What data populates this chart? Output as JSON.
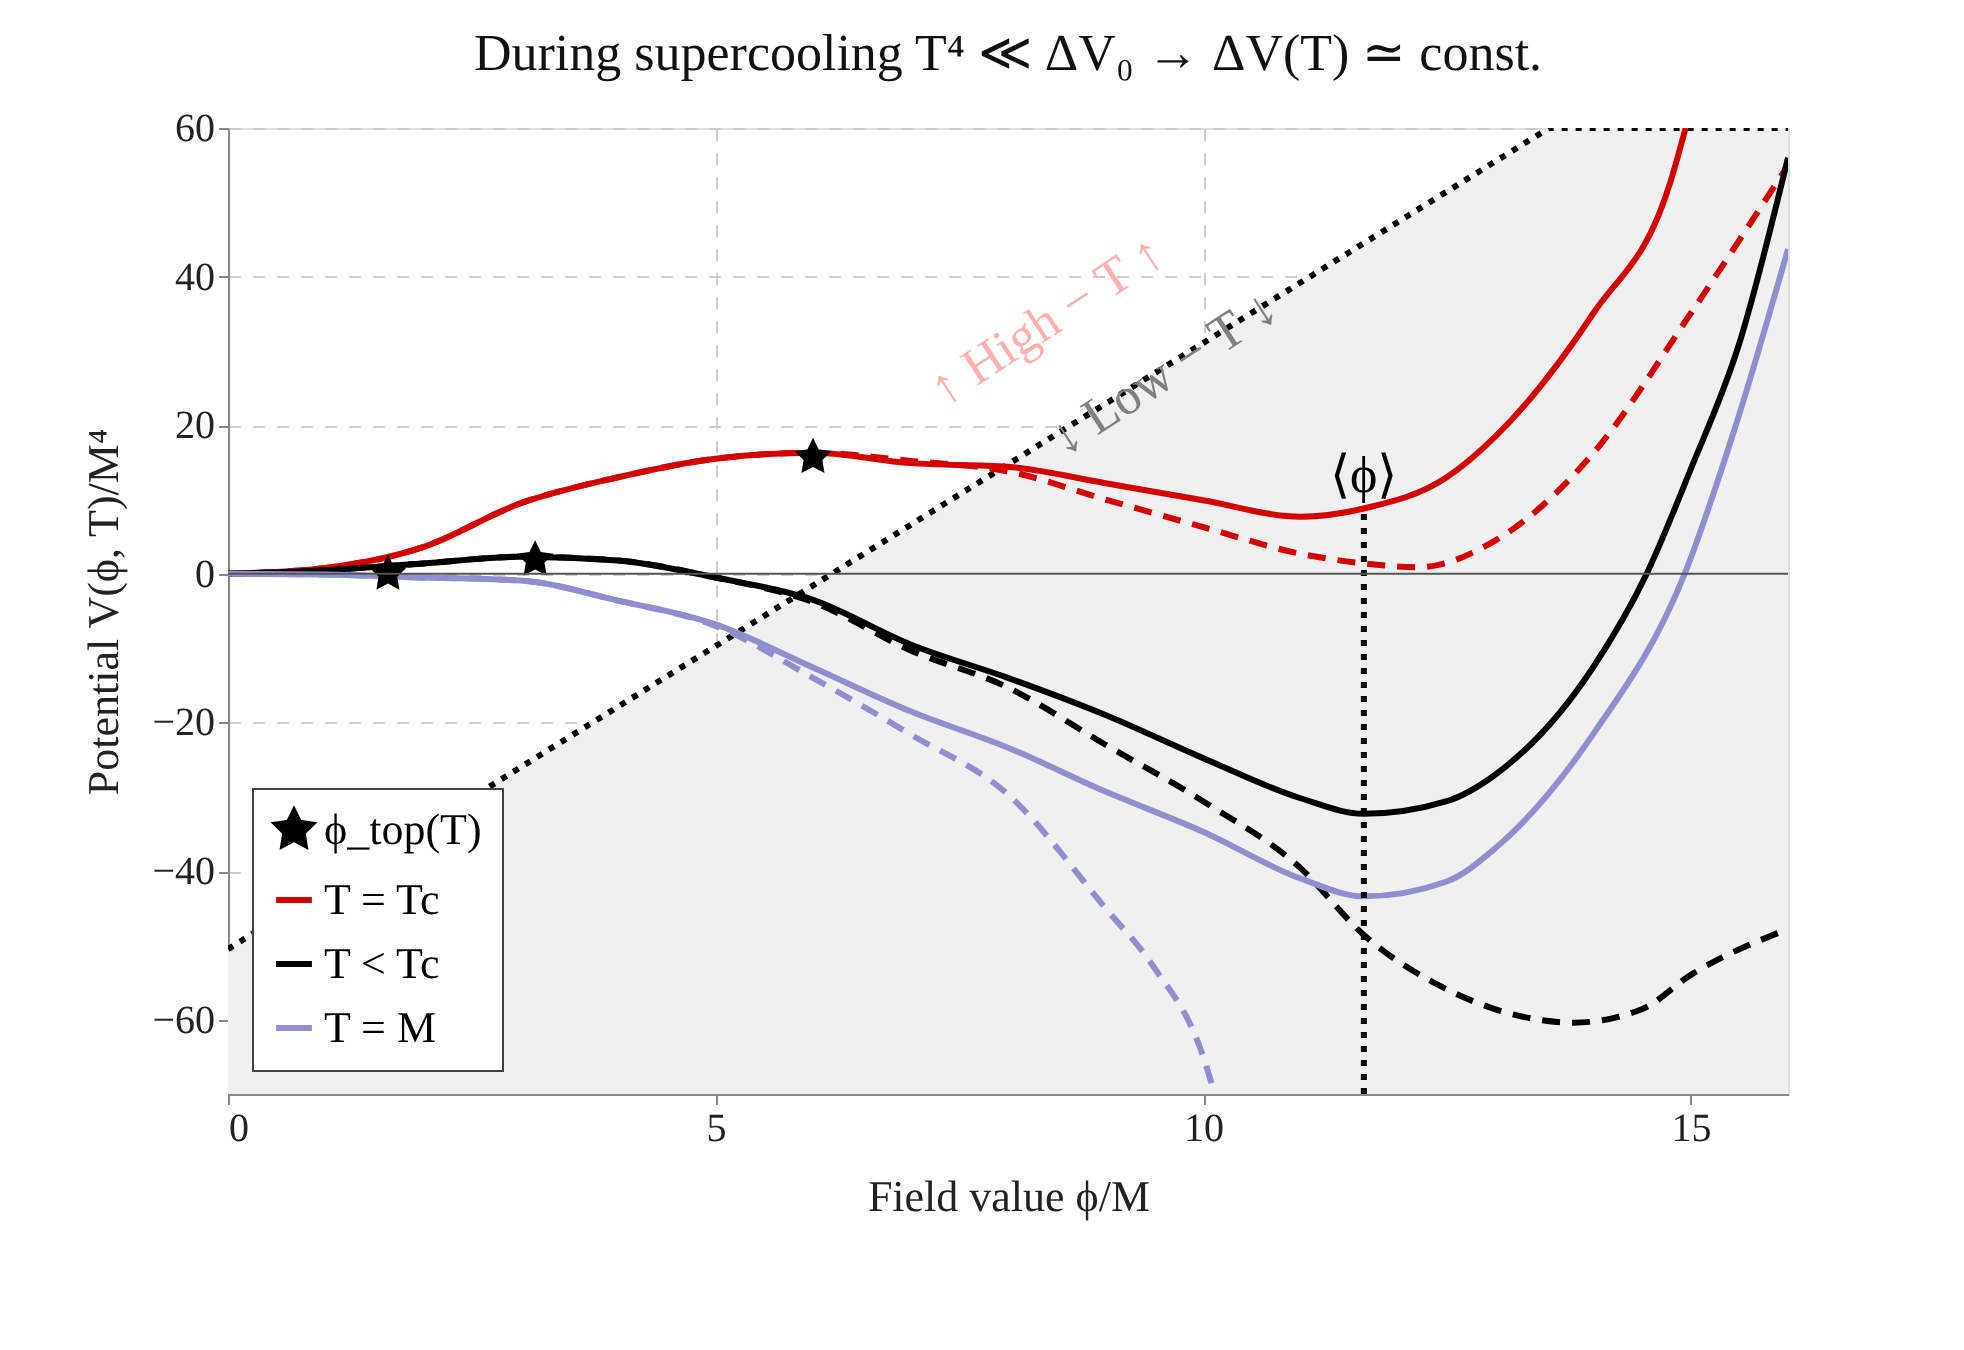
{
  "chart_data": {
    "type": "line",
    "title": "During supercooling  T⁴ ≪ ΔV₀ → ΔV(T) ≃ const.",
    "xlabel": "Field value ϕ/M",
    "ylabel": "Potential V(ϕ, T)/M⁴",
    "xlim": [
      0,
      16
    ],
    "xticks": [
      0,
      5,
      10,
      15
    ],
    "ylim": [
      -70,
      60
    ],
    "yticks": [
      -60,
      -40,
      -20,
      0,
      20,
      40,
      60
    ],
    "grid": true,
    "legend": "bottom left",
    "ref_lines": [
      {
        "axis": "y",
        "value": 0,
        "color": "#555555",
        "line_style": "solid"
      }
    ],
    "series": [
      {
        "line_style": "dotted",
        "color": "#000000",
        "x": [
          0,
          13.55,
          16
        ],
        "values": [
          -50.5,
          60,
          60
        ],
        "lower": [
          -70,
          -70,
          -70
        ],
        "upper": [
          -50.5,
          60,
          60
        ]
      },
      {
        "line_style": "dashed",
        "color": "#d40000",
        "x": [
          0,
          1,
          2,
          3,
          4,
          5,
          6,
          7,
          8,
          9,
          10,
          11,
          11.65,
          12.2,
          13,
          14,
          15,
          16
        ],
        "values": [
          0,
          0.8,
          3.6,
          9.5,
          13,
          15.5,
          16.3,
          15.2,
          13.8,
          10,
          6.3,
          2.7,
          1.4,
          0.9,
          4.5,
          16.2,
          35,
          55
        ]
      },
      {
        "line_style": "dashed",
        "color": "#000000",
        "x": [
          0,
          1,
          2,
          3,
          4,
          5,
          6,
          7,
          8,
          9,
          10,
          11,
          11.65,
          12.5,
          13,
          13.8,
          14.5,
          15,
          16
        ],
        "values": [
          0,
          0.5,
          1.4,
          2.3,
          1.8,
          -0.5,
          -3.8,
          -10.3,
          -15.3,
          -23,
          -30.6,
          -39.6,
          -48.6,
          -55.9,
          -58.6,
          -60.4,
          -58.6,
          -54,
          -47.8
        ]
      },
      {
        "line_style": "dashed",
        "color": "#8f8fcf",
        "x": [
          0,
          1,
          2,
          3,
          4,
          5,
          6,
          7,
          8,
          9,
          9.5,
          10,
          10.12
        ],
        "values": [
          0,
          -0.1,
          -0.5,
          -0.9,
          -3.6,
          -7,
          -14,
          -21.6,
          -29.7,
          -45,
          -53,
          -64.9,
          -70
        ]
      },
      {
        "type": "scatter",
        "name": "ϕ_top(T)",
        "marker": "star",
        "color": "#000000",
        "x": [
          1.64,
          3.15,
          6.0
        ],
        "values": [
          0,
          1.9,
          15.7
        ]
      },
      {
        "name": "T = Tc",
        "line_style": "solid",
        "color": "#d40000",
        "x": [
          0,
          1,
          2,
          3,
          4,
          5,
          6,
          7,
          8,
          9,
          10,
          11,
          11.65,
          12.5,
          13,
          14,
          14.8,
          14.95
        ],
        "values": [
          0,
          0.8,
          3.6,
          9.5,
          13,
          15.5,
          16.3,
          14.9,
          14.4,
          12.2,
          9.9,
          7.7,
          8.8,
          13,
          18.5,
          35,
          53,
          60
        ]
      },
      {
        "name": "T < Tc",
        "line_style": "solid",
        "color": "#000000",
        "x": [
          0,
          1,
          2,
          3,
          4,
          5,
          6,
          7,
          8,
          9,
          10,
          11,
          11.65,
          12.5,
          13,
          14,
          14.55,
          15,
          15.5,
          16
        ],
        "values": [
          0,
          0.5,
          1.4,
          2.3,
          1.8,
          -0.5,
          -3.5,
          -9.5,
          -14,
          -19,
          -24.8,
          -30.2,
          -32.3,
          -30.6,
          -27,
          -12.6,
          0,
          14,
          31,
          56
        ]
      },
      {
        "name": "T = M",
        "line_style": "solid",
        "color": "#8f8fcf",
        "x": [
          0,
          1,
          2,
          3,
          4,
          5,
          6,
          7,
          8,
          9,
          10,
          11,
          11.65,
          12.5,
          13,
          14,
          14.94,
          15.46,
          16
        ],
        "values": [
          0,
          -0.1,
          -0.5,
          -0.9,
          -3.6,
          -6.8,
          -12.6,
          -18.5,
          -23.4,
          -29.3,
          -34.7,
          -41,
          -43.4,
          -41.4,
          -36.9,
          -21.6,
          0,
          19.8,
          43.7
        ]
      },
      {
        "line_style": "dotted",
        "color": "#000000",
        "x": [
          11.65,
          11.65
        ],
        "values": [
          -70,
          8.8
        ]
      }
    ],
    "annotations": [
      "↑ High − T ↑",
      {
        "text": "↓ Low − T ↓",
        "x": 9.6,
        "y": 27
      },
      "⟨ϕ⟩"
    ]
  }
}
